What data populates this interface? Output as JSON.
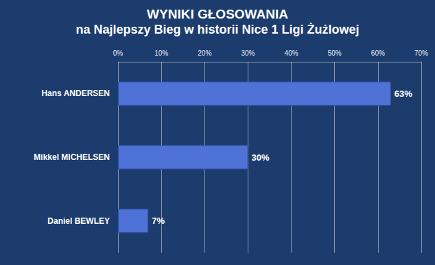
{
  "chart_data": {
    "type": "bar",
    "orientation": "horizontal",
    "title": "WYNIKI GŁOSOWANIA",
    "subtitle": "na Najlepszy Bieg w historii Nice 1 Ligi Żużlowej",
    "categories": [
      "Hans ANDERSEN",
      "Mikkel MICHELSEN",
      "Daniel BEWLEY"
    ],
    "values": [
      63,
      30,
      7
    ],
    "value_labels": [
      "63%",
      "30%",
      "7%"
    ],
    "color": "#4f72d6",
    "xlim": [
      0,
      70
    ],
    "xticks": [
      {
        "value": 0,
        "label": "0%"
      },
      {
        "value": 10,
        "label": "10%"
      },
      {
        "value": 20,
        "label": "20%"
      },
      {
        "value": 30,
        "label": "30%"
      },
      {
        "value": 40,
        "label": "40%"
      },
      {
        "value": 50,
        "label": "50%"
      },
      {
        "value": 60,
        "label": "60%"
      },
      {
        "value": 70,
        "label": "70%"
      }
    ],
    "grid": true,
    "data_labels": true
  }
}
